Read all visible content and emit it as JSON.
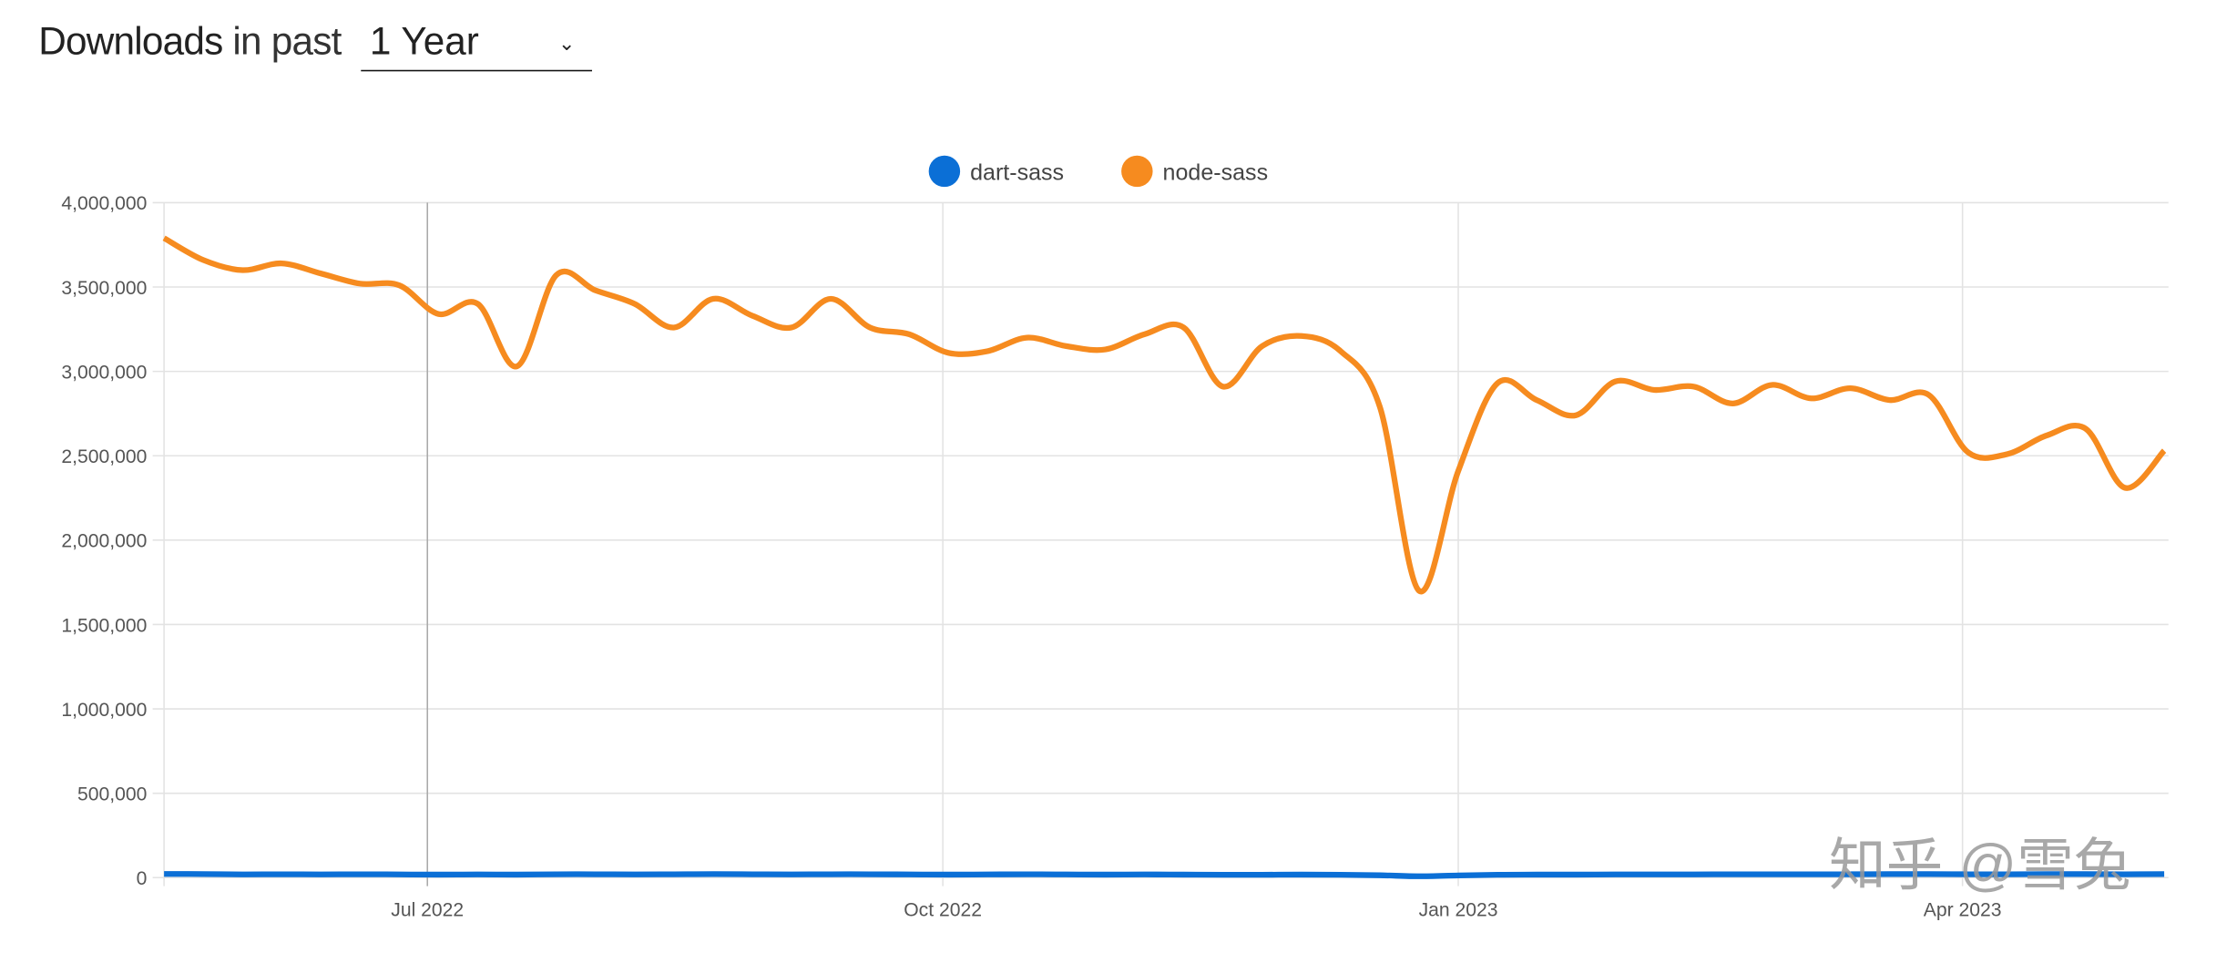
{
  "header": {
    "title_bold": "Downloads",
    "title_light": "in past",
    "range_select": {
      "value": "1 Year",
      "icon": "chevron-down-icon"
    }
  },
  "watermark": "知乎 @雪兔",
  "chart_data": {
    "type": "line",
    "title": "",
    "xlabel": "",
    "ylabel": "",
    "ylim": [
      0,
      4000000
    ],
    "y_ticks": [
      "0",
      "500,000",
      "1,000,000",
      "1,500,000",
      "2,000,000",
      "2,500,000",
      "3,000,000",
      "3,500,000",
      "4,000,000"
    ],
    "y_tick_values": [
      0,
      500000,
      1000000,
      1500000,
      2000000,
      2500000,
      3000000,
      3500000,
      4000000
    ],
    "x_ticks": [
      {
        "label": "Jul 2022",
        "date": "2022-07-01"
      },
      {
        "label": "Oct 2022",
        "date": "2022-10-01"
      },
      {
        "label": "Jan 2023",
        "date": "2023-01-01"
      },
      {
        "label": "Apr 2023",
        "date": "2023-04-01"
      }
    ],
    "xlim": [
      "2022-05-15",
      "2023-05-07"
    ],
    "grid": true,
    "legend_placement": "top-center",
    "x": [
      "2022-05-15",
      "2022-05-22",
      "2022-05-29",
      "2022-06-05",
      "2022-06-12",
      "2022-06-19",
      "2022-06-26",
      "2022-07-03",
      "2022-07-10",
      "2022-07-17",
      "2022-07-24",
      "2022-07-31",
      "2022-08-07",
      "2022-08-14",
      "2022-08-21",
      "2022-08-28",
      "2022-09-04",
      "2022-09-11",
      "2022-09-18",
      "2022-09-25",
      "2022-10-02",
      "2022-10-09",
      "2022-10-16",
      "2022-10-23",
      "2022-10-30",
      "2022-11-06",
      "2022-11-13",
      "2022-11-20",
      "2022-11-27",
      "2022-12-04",
      "2022-12-11",
      "2022-12-18",
      "2022-12-25",
      "2023-01-01",
      "2023-01-08",
      "2023-01-15",
      "2023-01-22",
      "2023-01-29",
      "2023-02-05",
      "2023-02-12",
      "2023-02-19",
      "2023-02-26",
      "2023-03-05",
      "2023-03-12",
      "2023-03-19",
      "2023-03-26",
      "2023-04-02",
      "2023-04-09",
      "2023-04-16",
      "2023-04-23",
      "2023-04-30",
      "2023-05-07"
    ],
    "series": [
      {
        "name": "dart-sass",
        "color": "#0b6fd6",
        "values": [
          22000,
          21000,
          19000,
          20000,
          19000,
          20000,
          19000,
          18000,
          19000,
          18000,
          20000,
          20000,
          19000,
          20000,
          21000,
          20000,
          19000,
          20000,
          20000,
          19000,
          18000,
          19000,
          20000,
          19000,
          18000,
          19000,
          18000,
          17000,
          17000,
          18000,
          17000,
          14000,
          8000,
          13000,
          17000,
          18000,
          18000,
          19000,
          19000,
          19000,
          20000,
          20000,
          20000,
          20000,
          21000,
          21000,
          20000,
          20000,
          21000,
          21000,
          20000,
          21000
        ]
      },
      {
        "name": "node-sass",
        "color": "#f68b1f",
        "values": [
          3790000,
          3660000,
          3600000,
          3640000,
          3580000,
          3520000,
          3510000,
          3340000,
          3400000,
          3030000,
          3570000,
          3480000,
          3400000,
          3260000,
          3430000,
          3330000,
          3260000,
          3430000,
          3260000,
          3220000,
          3110000,
          3120000,
          3200000,
          3150000,
          3130000,
          3220000,
          3260000,
          2910000,
          3150000,
          3210000,
          3120000,
          2790000,
          1700000,
          2410000,
          2930000,
          2830000,
          2740000,
          2940000,
          2890000,
          2910000,
          2810000,
          2920000,
          2840000,
          2900000,
          2830000,
          2860000,
          2520000,
          2510000,
          2620000,
          2660000,
          2310000,
          2530000
        ]
      }
    ]
  }
}
